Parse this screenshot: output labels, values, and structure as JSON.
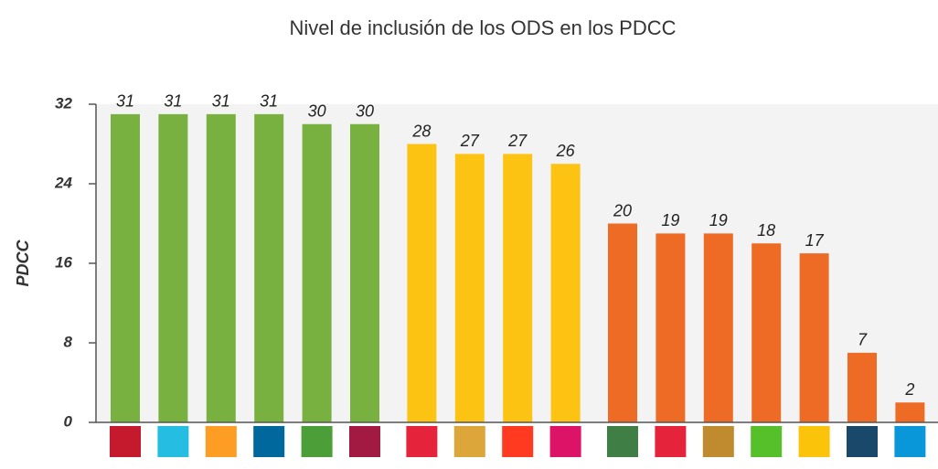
{
  "chart_data": {
    "type": "bar",
    "title": "Nivel de inclusión de los ODS en los PDCC",
    "y_label": "PDCC",
    "categories": [
      null,
      null,
      null,
      null,
      null,
      null,
      null,
      null,
      null,
      null,
      null,
      null,
      null,
      null,
      null,
      null,
      null
    ],
    "values": [
      31,
      31,
      31,
      31,
      30,
      30,
      28,
      27,
      27,
      26,
      20,
      19,
      19,
      18,
      17,
      7,
      2
    ],
    "colors": [
      "#78b140",
      "#78b140",
      "#78b140",
      "#78b140",
      "#78b140",
      "#78b140",
      "#fdc313",
      "#fdc313",
      "#fdc313",
      "#fdc313",
      "#ee6b25",
      "#ee6b25",
      "#ee6b25",
      "#ee6b25",
      "#ee6b25",
      "#ee6b25",
      "#ee6b25"
    ],
    "ylim": [
      0,
      32
    ],
    "yticks": [
      0,
      8,
      16,
      24,
      32
    ]
  }
}
